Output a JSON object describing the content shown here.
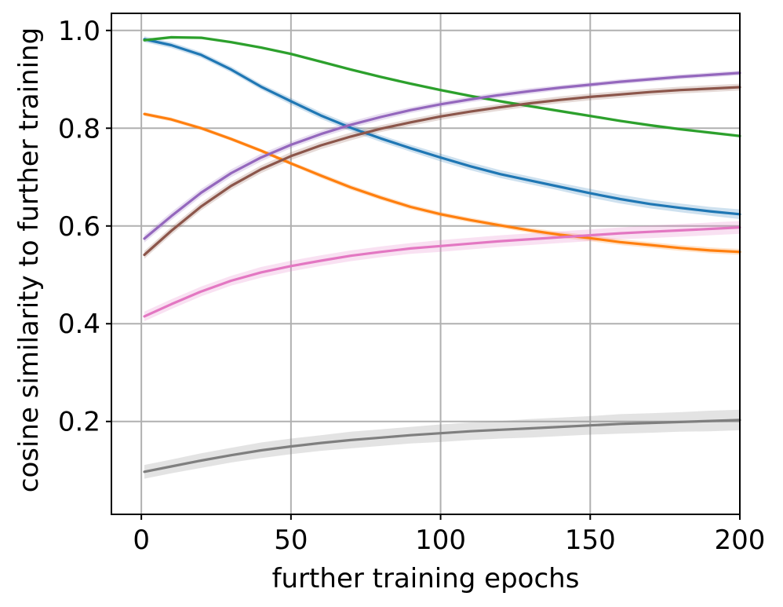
{
  "chart_data": {
    "type": "line",
    "title": "",
    "xlabel": "further training epochs",
    "ylabel": "cosine similarity to further training",
    "xlim": [
      -10,
      200
    ],
    "ylim": [
      0.01,
      1.035
    ],
    "xticks": [
      0,
      50,
      100,
      150,
      200
    ],
    "yticks": [
      0.2,
      0.4,
      0.6,
      0.8,
      1.0
    ],
    "xtick_labels": [
      "0",
      "50",
      "100",
      "150",
      "200"
    ],
    "ytick_labels": [
      "0.2",
      "0.4",
      "0.6",
      "0.8",
      "1.0"
    ],
    "grid": true,
    "legend": "none",
    "x": [
      1,
      10,
      20,
      30,
      40,
      50,
      60,
      70,
      80,
      90,
      100,
      110,
      120,
      130,
      140,
      150,
      160,
      170,
      180,
      190,
      200
    ],
    "series": [
      {
        "color": "#1f77b4",
        "values": [
          0.982,
          0.97,
          0.95,
          0.92,
          0.885,
          0.855,
          0.826,
          0.801,
          0.779,
          0.759,
          0.74,
          0.722,
          0.706,
          0.693,
          0.68,
          0.667,
          0.655,
          0.645,
          0.637,
          0.63,
          0.624
        ],
        "band": [
          0.006,
          0.006,
          0.006,
          0.006,
          0.006,
          0.007,
          0.007,
          0.007,
          0.007,
          0.007,
          0.008,
          0.008,
          0.008,
          0.008,
          0.008,
          0.009,
          0.009,
          0.009,
          0.009,
          0.009,
          0.01
        ]
      },
      {
        "color": "#ff7f0e",
        "values": [
          0.829,
          0.818,
          0.8,
          0.778,
          0.754,
          0.728,
          0.703,
          0.679,
          0.658,
          0.639,
          0.624,
          0.612,
          0.601,
          0.591,
          0.582,
          0.575,
          0.567,
          0.561,
          0.555,
          0.55,
          0.547
        ],
        "band": [
          0.004,
          0.004,
          0.004,
          0.004,
          0.004,
          0.004,
          0.005,
          0.005,
          0.005,
          0.005,
          0.005,
          0.005,
          0.005,
          0.005,
          0.006,
          0.006,
          0.006,
          0.006,
          0.006,
          0.006,
          0.006
        ]
      },
      {
        "color": "#2ca02c",
        "values": [
          0.98,
          0.986,
          0.985,
          0.976,
          0.965,
          0.952,
          0.936,
          0.92,
          0.905,
          0.891,
          0.878,
          0.866,
          0.855,
          0.845,
          0.835,
          0.825,
          0.815,
          0.806,
          0.798,
          0.791,
          0.784
        ],
        "band": [
          0.003,
          0.003,
          0.003,
          0.003,
          0.003,
          0.003,
          0.003,
          0.003,
          0.003,
          0.003,
          0.003,
          0.003,
          0.003,
          0.003,
          0.003,
          0.003,
          0.003,
          0.003,
          0.003,
          0.003,
          0.003
        ]
      },
      {
        "color": "#9467bd",
        "values": [
          0.574,
          0.62,
          0.668,
          0.708,
          0.74,
          0.766,
          0.788,
          0.807,
          0.823,
          0.837,
          0.849,
          0.859,
          0.868,
          0.876,
          0.883,
          0.889,
          0.895,
          0.9,
          0.905,
          0.909,
          0.913
        ],
        "band": [
          0.008,
          0.008,
          0.008,
          0.008,
          0.008,
          0.007,
          0.007,
          0.007,
          0.007,
          0.006,
          0.006,
          0.006,
          0.006,
          0.006,
          0.005,
          0.005,
          0.005,
          0.005,
          0.005,
          0.005,
          0.005
        ]
      },
      {
        "color": "#8c564b",
        "values": [
          0.541,
          0.59,
          0.64,
          0.682,
          0.716,
          0.743,
          0.765,
          0.783,
          0.799,
          0.812,
          0.824,
          0.834,
          0.843,
          0.851,
          0.858,
          0.864,
          0.869,
          0.874,
          0.878,
          0.881,
          0.884
        ],
        "band": [
          0.008,
          0.008,
          0.008,
          0.008,
          0.008,
          0.008,
          0.008,
          0.008,
          0.007,
          0.007,
          0.007,
          0.007,
          0.007,
          0.007,
          0.007,
          0.007,
          0.007,
          0.007,
          0.007,
          0.007,
          0.007
        ]
      },
      {
        "color": "#e377c2",
        "values": [
          0.415,
          0.44,
          0.466,
          0.488,
          0.505,
          0.518,
          0.529,
          0.539,
          0.547,
          0.554,
          0.559,
          0.564,
          0.569,
          0.573,
          0.577,
          0.581,
          0.585,
          0.588,
          0.591,
          0.594,
          0.597
        ],
        "band": [
          0.01,
          0.01,
          0.01,
          0.01,
          0.011,
          0.011,
          0.011,
          0.011,
          0.011,
          0.011,
          0.012,
          0.012,
          0.012,
          0.012,
          0.012,
          0.012,
          0.012,
          0.013,
          0.013,
          0.013,
          0.013
        ]
      },
      {
        "color": "#7f7f7f",
        "values": [
          0.097,
          0.108,
          0.12,
          0.131,
          0.141,
          0.149,
          0.156,
          0.162,
          0.167,
          0.172,
          0.176,
          0.18,
          0.183,
          0.186,
          0.189,
          0.192,
          0.195,
          0.197,
          0.199,
          0.201,
          0.203
        ],
        "band": [
          0.014,
          0.014,
          0.015,
          0.015,
          0.016,
          0.016,
          0.016,
          0.017,
          0.017,
          0.017,
          0.018,
          0.018,
          0.018,
          0.019,
          0.019,
          0.019,
          0.02,
          0.02,
          0.02,
          0.021,
          0.021
        ]
      }
    ]
  }
}
